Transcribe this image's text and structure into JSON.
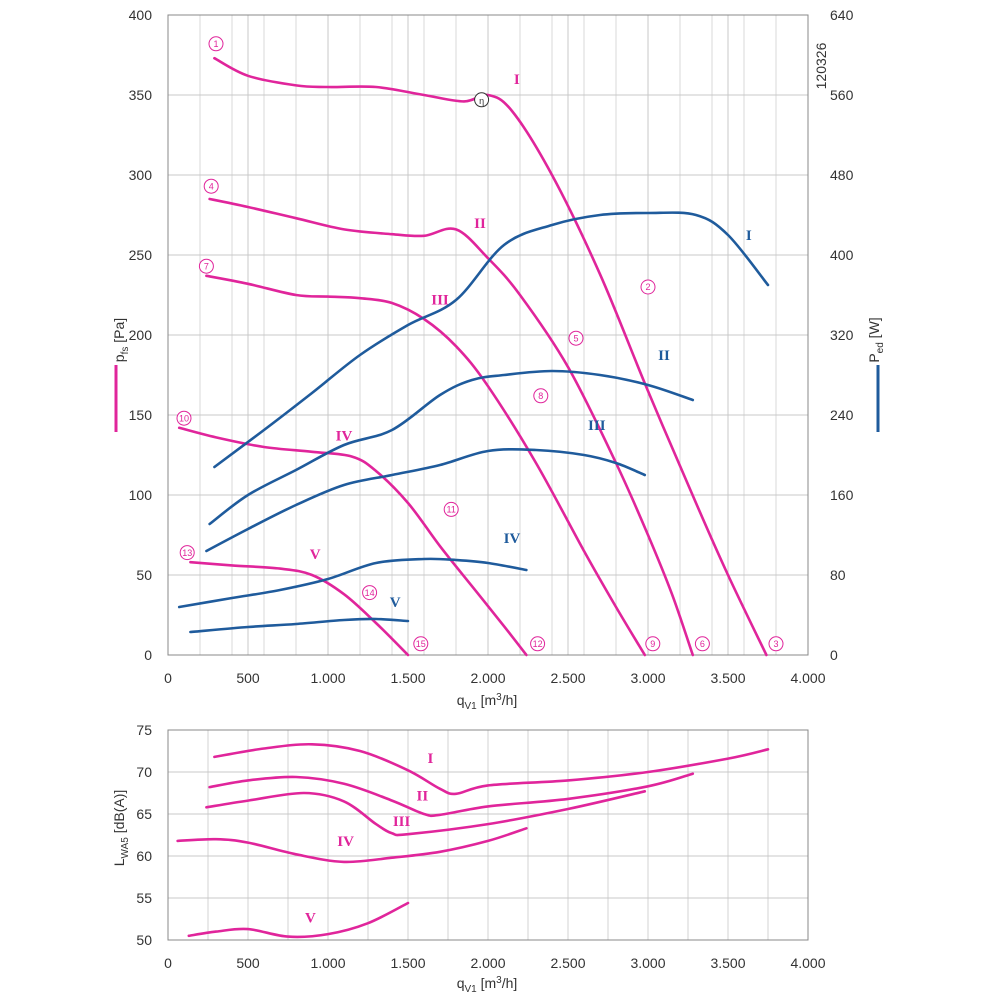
{
  "colors": {
    "pressure": "#e0259b",
    "power": "#1f5b9c",
    "grid": "#c8c8c8",
    "frame": "#888888"
  },
  "chart_code": "120326",
  "efficiency_marker": "η",
  "chart_data": [
    {
      "type": "line",
      "xlabel": "q_V1 [m³/h]",
      "ylabel_left": "p_fs [Pa]",
      "ylabel_right": "P_ed [W]",
      "xlim": [
        0,
        4000
      ],
      "ylim_left": [
        0,
        400
      ],
      "ylim_right": [
        0,
        640
      ],
      "x_ticks": [
        0,
        500,
        1000,
        1500,
        2000,
        2500,
        3000,
        3500,
        4000
      ],
      "x_tick_labels": [
        "0",
        "500",
        "1.000",
        "1.500",
        "2.000",
        "2.500",
        "3.000",
        "3.500",
        "4.000"
      ],
      "y_left_ticks": [
        0,
        50,
        100,
        150,
        200,
        250,
        300,
        350,
        400
      ],
      "y_left_tick_labels": [
        "0",
        "50",
        "100",
        "150",
        "200",
        "250",
        "300",
        "350",
        "400"
      ],
      "y_right_ticks": [
        0,
        80,
        160,
        240,
        320,
        400,
        480,
        560,
        640
      ],
      "y_right_tick_labels": [
        "0",
        "80",
        "160",
        "240",
        "320",
        "400",
        "480",
        "560",
        "640"
      ],
      "grid": true,
      "pressure_series": [
        {
          "name": "I",
          "x": [
            290,
            500,
            800,
            1000,
            1300,
            1600,
            1850,
            2000,
            2150,
            2400,
            2700,
            3000,
            3300,
            3500,
            3740
          ],
          "y": [
            373,
            362,
            356,
            355,
            355,
            350,
            346,
            350,
            340,
            300,
            238,
            165,
            95,
            50,
            0
          ]
        },
        {
          "name": "II",
          "x": [
            260,
            500,
            800,
            1100,
            1400,
            1600,
            1800,
            2000,
            2200,
            2500,
            2800,
            3000,
            3150,
            3280
          ],
          "y": [
            285,
            280,
            273,
            266,
            263,
            262,
            266,
            248,
            225,
            180,
            120,
            75,
            38,
            0
          ]
        },
        {
          "name": "III",
          "x": [
            240,
            500,
            800,
            1000,
            1200,
            1400,
            1600,
            1800,
            2000,
            2300,
            2600,
            2800,
            2980
          ],
          "y": [
            237,
            232,
            225,
            224,
            223,
            220,
            210,
            193,
            168,
            120,
            65,
            30,
            0
          ]
        },
        {
          "name": "IV",
          "x": [
            70,
            300,
            600,
            900,
            1150,
            1300,
            1500,
            1700,
            1900,
            2100,
            2240
          ],
          "y": [
            142,
            136,
            130,
            127,
            124,
            115,
            95,
            68,
            43,
            18,
            0
          ]
        },
        {
          "name": "V",
          "x": [
            140,
            400,
            700,
            900,
            1100,
            1300,
            1500
          ],
          "y": [
            58,
            56,
            54,
            50,
            38,
            20,
            0
          ]
        }
      ],
      "power_series": [
        {
          "name": "I",
          "x": [
            290,
            600,
            900,
            1200,
            1500,
            1800,
            2100,
            2400,
            2700,
            3000,
            3300,
            3500,
            3750
          ],
          "y": [
            188,
            225,
            262,
            300,
            330,
            355,
            410,
            430,
            440,
            442,
            440,
            420,
            370
          ]
        },
        {
          "name": "II",
          "x": [
            260,
            500,
            800,
            1100,
            1400,
            1700,
            1900,
            2100,
            2400,
            2700,
            3000,
            3280
          ],
          "y": [
            131,
            160,
            185,
            210,
            225,
            260,
            275,
            280,
            284,
            280,
            270,
            255
          ]
        },
        {
          "name": "III",
          "x": [
            240,
            500,
            800,
            1100,
            1400,
            1700,
            2000,
            2300,
            2600,
            2800,
            2980
          ],
          "y": [
            104,
            126,
            150,
            170,
            180,
            190,
            204,
            205,
            200,
            192,
            180
          ]
        },
        {
          "name": "IV",
          "x": [
            70,
            400,
            700,
            1000,
            1300,
            1600,
            1800,
            2000,
            2240
          ],
          "y": [
            48,
            57,
            65,
            76,
            92,
            96,
            95,
            92,
            85
          ]
        },
        {
          "name": "V",
          "x": [
            140,
            500,
            800,
            1100,
            1300,
            1500
          ],
          "y": [
            23,
            28,
            31,
            35,
            36,
            34
          ]
        }
      ],
      "circled_labels": [
        {
          "text": "1",
          "x": 300,
          "y": 382
        },
        {
          "text": "2",
          "x": 3000,
          "y": 230
        },
        {
          "text": "3",
          "x": 3800,
          "y": 7
        },
        {
          "text": "4",
          "x": 270,
          "y": 293
        },
        {
          "text": "5",
          "x": 2550,
          "y": 198
        },
        {
          "text": "6",
          "x": 3340,
          "y": 7
        },
        {
          "text": "7",
          "x": 240,
          "y": 243
        },
        {
          "text": "8",
          "x": 2330,
          "y": 162
        },
        {
          "text": "9",
          "x": 3030,
          "y": 7
        },
        {
          "text": "10",
          "x": 100,
          "y": 148
        },
        {
          "text": "11",
          "x": 1770,
          "y": 91
        },
        {
          "text": "12",
          "x": 2310,
          "y": 7
        },
        {
          "text": "13",
          "x": 120,
          "y": 64
        },
        {
          "text": "14",
          "x": 1260,
          "y": 39
        },
        {
          "text": "15",
          "x": 1580,
          "y": 7
        }
      ],
      "roman_labels_pressure": [
        {
          "text": "I",
          "x": 2180,
          "y": 357
        },
        {
          "text": "II",
          "x": 1950,
          "y": 267
        },
        {
          "text": "III",
          "x": 1700,
          "y": 219
        },
        {
          "text": "IV",
          "x": 1100,
          "y": 134
        },
        {
          "text": "V",
          "x": 920,
          "y": 60
        }
      ],
      "roman_labels_power": [
        {
          "text": "I",
          "x": 3630,
          "y": 415
        },
        {
          "text": "II",
          "x": 3100,
          "y": 295
        },
        {
          "text": "III",
          "x": 2680,
          "y": 225
        },
        {
          "text": "IV",
          "x": 2150,
          "y": 112
        },
        {
          "text": "V",
          "x": 1420,
          "y": 48
        }
      ],
      "efficiency_point": {
        "x": 1960,
        "y": 347
      }
    },
    {
      "type": "line",
      "xlabel": "q_V1 [m³/h]",
      "ylabel": "L_WA5 [dB(A)]",
      "xlim": [
        0,
        4000
      ],
      "ylim": [
        50,
        75
      ],
      "x_ticks": [
        0,
        500,
        1000,
        1500,
        2000,
        2500,
        3000,
        3500,
        4000
      ],
      "x_tick_labels": [
        "0",
        "500",
        "1.000",
        "1.500",
        "2.000",
        "2.500",
        "3.000",
        "3.500",
        "4.000"
      ],
      "y_ticks": [
        50,
        55,
        60,
        65,
        70,
        75
      ],
      "y_tick_labels": [
        "50",
        "55",
        "60",
        "65",
        "70",
        "75"
      ],
      "grid": true,
      "series": [
        {
          "name": "I",
          "x": [
            290,
            600,
            900,
            1200,
            1500,
            1700,
            1800,
            2000,
            2500,
            3000,
            3500,
            3750
          ],
          "y": [
            71.8,
            72.8,
            73.3,
            72.5,
            70.2,
            68.0,
            67.4,
            68.4,
            69.0,
            70.0,
            71.6,
            72.7
          ]
        },
        {
          "name": "II",
          "x": [
            260,
            500,
            800,
            1100,
            1400,
            1600,
            1700,
            2000,
            2500,
            3000,
            3280
          ],
          "y": [
            68.2,
            69.0,
            69.4,
            68.6,
            66.6,
            65.0,
            64.9,
            65.9,
            66.8,
            68.3,
            69.8
          ]
        },
        {
          "name": "III",
          "x": [
            240,
            500,
            850,
            1100,
            1300,
            1400,
            1500,
            2000,
            2500,
            2980
          ],
          "y": [
            65.8,
            66.6,
            67.5,
            66.5,
            63.8,
            62.7,
            62.6,
            63.8,
            65.6,
            67.7
          ]
        },
        {
          "name": "IV",
          "x": [
            60,
            300,
            500,
            800,
            1100,
            1400,
            1700,
            2000,
            2240
          ],
          "y": [
            61.8,
            62.0,
            61.6,
            60.2,
            59.3,
            59.8,
            60.5,
            61.8,
            63.3
          ]
        },
        {
          "name": "V",
          "x": [
            130,
            300,
            500,
            750,
            1000,
            1250,
            1500
          ],
          "y": [
            50.5,
            51.0,
            51.3,
            50.4,
            50.7,
            52.0,
            54.4
          ]
        }
      ],
      "roman_labels": [
        {
          "text": "I",
          "x": 1640,
          "y": 71.1
        },
        {
          "text": "II",
          "x": 1590,
          "y": 66.6
        },
        {
          "text": "III",
          "x": 1460,
          "y": 63.6
        },
        {
          "text": "IV",
          "x": 1110,
          "y": 61.2
        },
        {
          "text": "V",
          "x": 890,
          "y": 52.1
        }
      ]
    }
  ]
}
